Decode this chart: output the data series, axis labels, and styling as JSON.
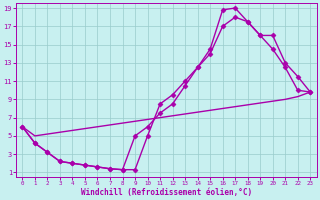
{
  "xlabel": "Windchill (Refroidissement éolien,°C)",
  "bg_color": "#c8f0f0",
  "line_color": "#aa00aa",
  "xlim": [
    -0.5,
    23.5
  ],
  "ylim": [
    0.5,
    19.5
  ],
  "xticks": [
    0,
    1,
    2,
    3,
    4,
    5,
    6,
    7,
    8,
    9,
    10,
    11,
    12,
    13,
    14,
    15,
    16,
    17,
    18,
    19,
    20,
    21,
    22,
    23
  ],
  "yticks": [
    1,
    3,
    5,
    7,
    9,
    11,
    13,
    15,
    17,
    19
  ],
  "line1_x": [
    0,
    1,
    2,
    3,
    4,
    5,
    6,
    7,
    8,
    9,
    10,
    11,
    12,
    13,
    14,
    15,
    16,
    17,
    18,
    19,
    20,
    21,
    22,
    23
  ],
  "line1_y": [
    6.0,
    4.2,
    3.2,
    2.2,
    2.0,
    1.8,
    1.6,
    1.4,
    1.3,
    1.3,
    5.0,
    8.5,
    9.5,
    11.0,
    12.5,
    14.5,
    18.8,
    19.0,
    17.5,
    16.0,
    14.5,
    12.5,
    10.0,
    9.8
  ],
  "line2_x": [
    0,
    1,
    2,
    3,
    4,
    5,
    6,
    7,
    8,
    9,
    10,
    11,
    12,
    13,
    14,
    15,
    16,
    17,
    18,
    19,
    20,
    21,
    22,
    23
  ],
  "line2_y": [
    6.0,
    4.2,
    3.2,
    2.2,
    2.0,
    1.8,
    1.6,
    1.4,
    1.3,
    5.0,
    6.0,
    7.5,
    8.5,
    10.5,
    12.5,
    14.0,
    17.0,
    18.0,
    17.5,
    16.0,
    16.0,
    13.0,
    11.5,
    9.8
  ],
  "line3_x": [
    0,
    1,
    2,
    3,
    4,
    5,
    6,
    7,
    8,
    9,
    10,
    11,
    12,
    13,
    14,
    15,
    16,
    17,
    18,
    19,
    20,
    21,
    22,
    23
  ],
  "line3_y": [
    6.0,
    5.0,
    5.2,
    5.4,
    5.6,
    5.8,
    6.0,
    6.2,
    6.4,
    6.6,
    6.8,
    7.0,
    7.2,
    7.4,
    7.6,
    7.8,
    8.0,
    8.2,
    8.4,
    8.6,
    8.8,
    9.0,
    9.3,
    9.8
  ],
  "grid_color": "#99cccc",
  "marker": "D",
  "markersize": 2.5,
  "linewidth": 1.0
}
